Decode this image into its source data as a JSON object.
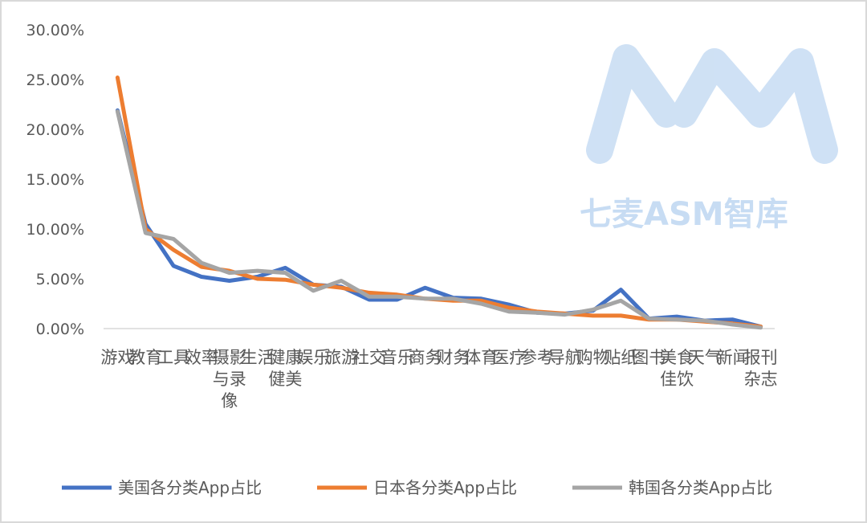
{
  "colors": {
    "us": "#4472c4",
    "jp": "#ed7d31",
    "kr": "#a5a5a5",
    "axis": "#d9d9d9",
    "text": "#595959",
    "watermark": "#c7dcf3"
  },
  "watermark": {
    "logo": "AM",
    "text": "七麦ASM智库"
  },
  "chart_data": {
    "type": "line",
    "title": "",
    "xlabel": "",
    "ylabel": "",
    "ylim": [
      0,
      0.3
    ],
    "yticks": [
      "0.00%",
      "5.00%",
      "10.00%",
      "15.00%",
      "20.00%",
      "25.00%",
      "30.00%"
    ],
    "grid": false,
    "legend_position": "bottom",
    "categories": [
      "游戏",
      "教育",
      "工具",
      "效率",
      "摄影与录像",
      "生活",
      "健康健美",
      "娱乐",
      "旅游",
      "社交",
      "音乐",
      "商务",
      "财务",
      "体育",
      "医疗",
      "参考",
      "导航",
      "购物",
      "贴纸",
      "图书",
      "美食佳饮",
      "天气",
      "新闻",
      "报刊杂志"
    ],
    "series": [
      {
        "name": "美国各分类App占比",
        "color": "#4472c4",
        "values": [
          0.219,
          0.105,
          0.063,
          0.052,
          0.048,
          0.052,
          0.061,
          0.044,
          0.042,
          0.029,
          0.029,
          0.041,
          0.031,
          0.03,
          0.024,
          0.016,
          0.015,
          0.018,
          0.039,
          0.01,
          0.012,
          0.008,
          0.009,
          0.002
        ]
      },
      {
        "name": "日本各分类App占比",
        "color": "#ed7d31",
        "values": [
          0.252,
          0.1,
          0.079,
          0.062,
          0.058,
          0.05,
          0.049,
          0.044,
          0.041,
          0.036,
          0.034,
          0.03,
          0.028,
          0.028,
          0.021,
          0.017,
          0.015,
          0.013,
          0.013,
          0.009,
          0.009,
          0.007,
          0.005,
          0.002
        ]
      },
      {
        "name": "韩国各分类App占比",
        "color": "#a5a5a5",
        "values": [
          0.218,
          0.096,
          0.09,
          0.066,
          0.056,
          0.058,
          0.056,
          0.038,
          0.048,
          0.032,
          0.032,
          0.03,
          0.03,
          0.025,
          0.017,
          0.016,
          0.014,
          0.019,
          0.028,
          0.01,
          0.009,
          0.008,
          0.004,
          0.001
        ]
      }
    ]
  }
}
